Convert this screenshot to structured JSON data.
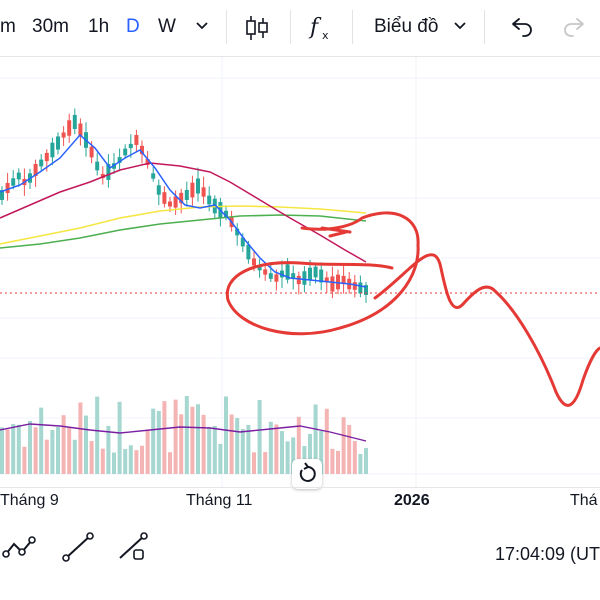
{
  "toolbar": {
    "intervals": [
      "m",
      "30m",
      "1h",
      "D",
      "W"
    ],
    "active_interval": "D",
    "chart_type_label": "Biểu đồ"
  },
  "x_axis": {
    "labels": [
      "Tháng 9",
      "Tháng 11",
      "2026",
      "Thá"
    ]
  },
  "status": {
    "clock": "17:04:09 (UT"
  },
  "colors": {
    "up": "#26a69a",
    "down": "#ef5350",
    "ma_fast": "#2962ff",
    "ma_mid": "#c2185b",
    "ma_slow_yellow": "#f5e642",
    "ma_slow_green": "#4caf50",
    "volume_ma": "#7b1fa2",
    "drawing": "#e53935",
    "active_interval": "#2962ff"
  },
  "icons": {
    "candles": "candlestick-icon",
    "indicators": "fx-icon",
    "undo": "undo-icon",
    "redo": "redo-icon",
    "reset": "reset-icon"
  }
}
